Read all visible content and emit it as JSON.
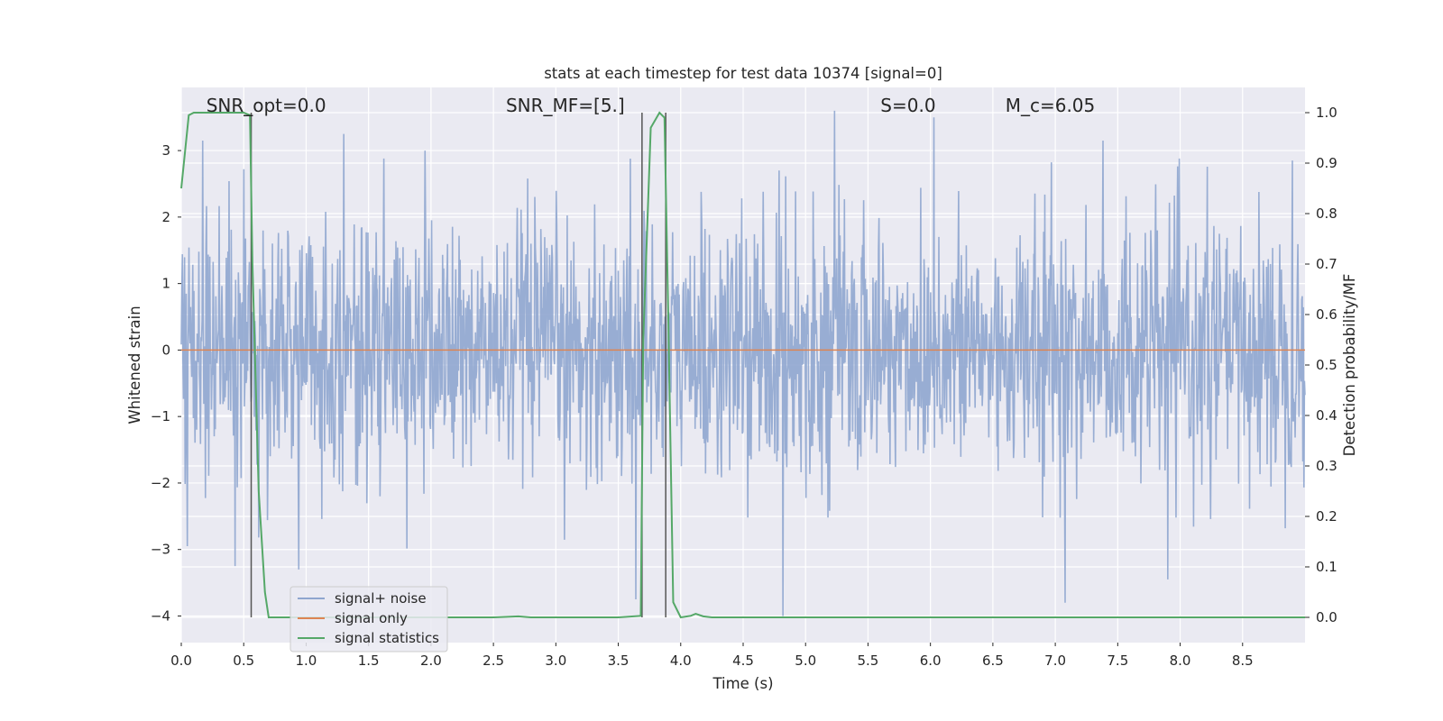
{
  "chart_data": {
    "type": "line",
    "title": "stats at each timestep for test data 10374 [signal=0]",
    "xlabel": "Time (s)",
    "ylabel": "Whitened strain",
    "ylabel_right": "Detection probability/MF",
    "xlim": [
      0.0,
      9.0
    ],
    "ylim": [
      -4.4,
      3.95
    ],
    "ylim_right": [
      -0.05,
      1.05
    ],
    "x_ticks": [
      0.0,
      0.5,
      1.0,
      1.5,
      2.0,
      2.5,
      3.0,
      3.5,
      4.0,
      4.5,
      5.0,
      5.5,
      6.0,
      6.5,
      7.0,
      7.5,
      8.0,
      8.5
    ],
    "x_tick_labels": [
      "0.0",
      "0.5",
      "1.0",
      "1.5",
      "2.0",
      "2.5",
      "3.0",
      "3.5",
      "4.0",
      "4.5",
      "5.0",
      "5.5",
      "6.0",
      "6.5",
      "7.0",
      "7.5",
      "8.0",
      "8.5"
    ],
    "y_ticks": [
      -4,
      -3,
      -2,
      -1,
      0,
      1,
      2,
      3
    ],
    "y_tick_labels": [
      "−4",
      "−3",
      "−2",
      "−1",
      "0",
      "1",
      "2",
      "3"
    ],
    "y_ticks_right": [
      0.0,
      0.1,
      0.2,
      0.3,
      0.4,
      0.5,
      0.6,
      0.7,
      0.8,
      0.9,
      1.0
    ],
    "y_tick_labels_right": [
      "0.0",
      "0.1",
      "0.2",
      "0.3",
      "0.4",
      "0.5",
      "0.6",
      "0.7",
      "0.8",
      "0.9",
      "1.0"
    ],
    "grid": true,
    "legend_position": "lower-left",
    "annotations": [
      {
        "text": "SNR_opt=0.0",
        "x": 0.2
      },
      {
        "text": "SNR_MF=[5.]",
        "x": 2.6
      },
      {
        "text": "S=0.0",
        "x": 5.6
      },
      {
        "text": "M_c=6.05",
        "x": 6.6
      }
    ],
    "series": [
      {
        "name": "signal+ noise",
        "color": "#8fa6cf",
        "axis": "left",
        "kind": "noise",
        "n_samples": 2048,
        "std": 0.95,
        "approx_range": [
          -4.0,
          3.6
        ],
        "spikes": [
          {
            "x": 0.05,
            "y": -2.95
          },
          {
            "x": 0.17,
            "y": 3.15
          },
          {
            "x": 0.43,
            "y": -3.25
          },
          {
            "x": 0.94,
            "y": -3.3
          },
          {
            "x": 1.3,
            "y": 3.25
          },
          {
            "x": 1.95,
            "y": 3.0
          },
          {
            "x": 3.64,
            "y": -3.75
          },
          {
            "x": 4.82,
            "y": -4.0
          },
          {
            "x": 5.23,
            "y": 3.6
          },
          {
            "x": 6.03,
            "y": 3.5
          },
          {
            "x": 7.08,
            "y": -3.8
          },
          {
            "x": 7.38,
            "y": 3.15
          },
          {
            "x": 7.9,
            "y": -3.45
          },
          {
            "x": 8.9,
            "y": 2.85
          }
        ]
      },
      {
        "name": "signal only",
        "color": "#dd8452",
        "axis": "left",
        "x": [
          0.0,
          9.0
        ],
        "y": [
          0.0,
          0.0
        ]
      },
      {
        "name": "signal statistics",
        "color": "#55a868",
        "axis": "right",
        "x": [
          0.0,
          0.06,
          0.1,
          0.15,
          0.2,
          0.3,
          0.4,
          0.5,
          0.55,
          0.57,
          0.62,
          0.67,
          0.7,
          0.8,
          1.0,
          2.0,
          2.5,
          2.7,
          2.8,
          3.0,
          3.5,
          3.68,
          3.7,
          3.76,
          3.83,
          3.87,
          3.9,
          3.94,
          4.0,
          4.08,
          4.12,
          4.18,
          4.25,
          4.5,
          5.0,
          6.0,
          7.0,
          8.0,
          9.0
        ],
        "y": [
          0.85,
          0.995,
          1.0,
          1.0,
          1.0,
          1.0,
          1.0,
          1.0,
          0.995,
          0.7,
          0.25,
          0.05,
          0.0,
          0.0,
          0.0,
          0.0,
          0.0,
          0.002,
          0.0,
          0.0,
          0.0,
          0.003,
          0.55,
          0.97,
          1.0,
          0.99,
          0.6,
          0.03,
          0.0,
          0.003,
          0.007,
          0.002,
          0.0,
          0.0,
          0.0,
          0.0,
          0.0,
          0.0,
          0.0
        ]
      }
    ],
    "vertical_markers": [
      {
        "x": 0.56,
        "color": "#555555"
      },
      {
        "x": 3.69,
        "color": "#555555"
      },
      {
        "x": 3.88,
        "color": "#555555"
      }
    ]
  }
}
